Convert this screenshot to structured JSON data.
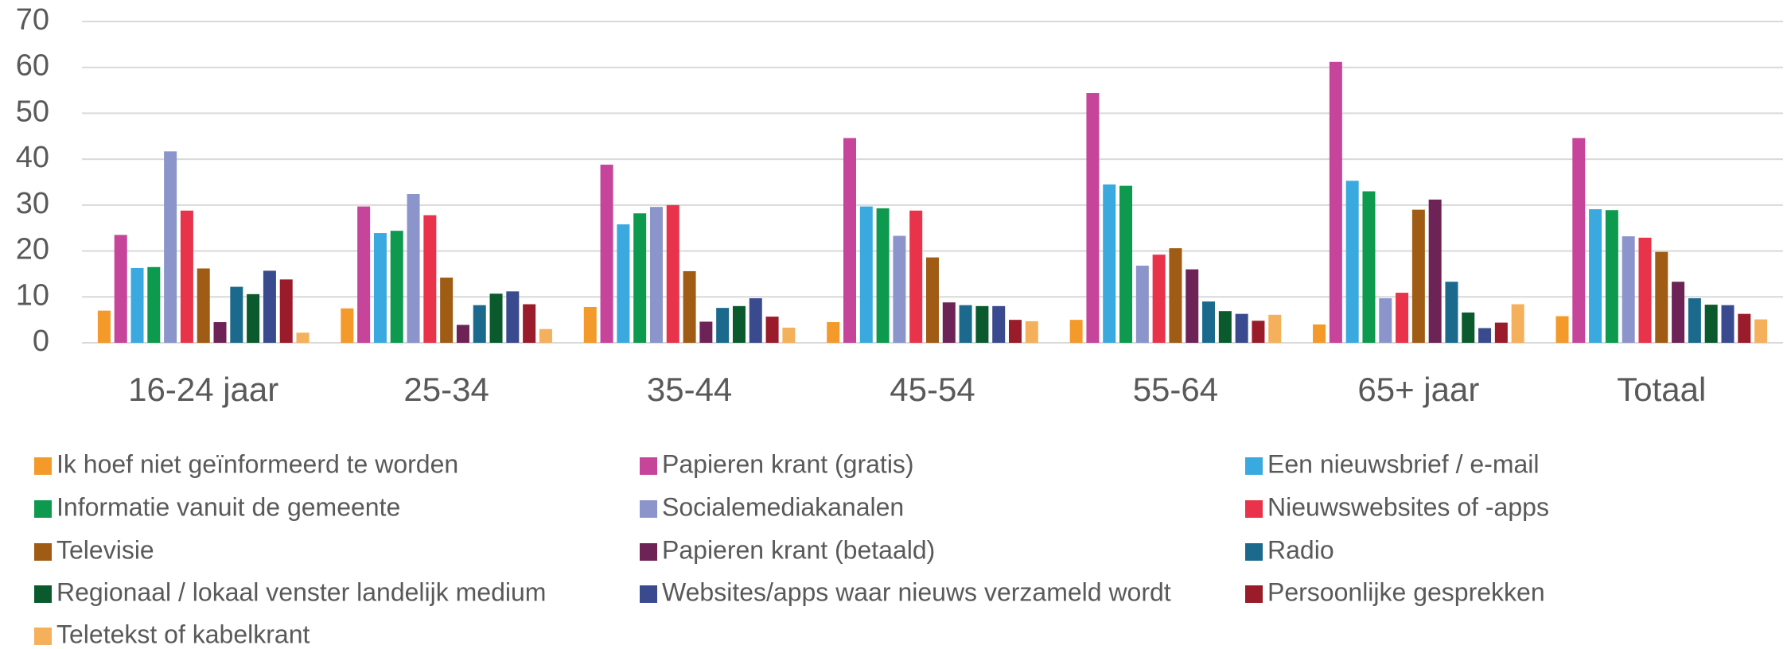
{
  "chart_data": {
    "type": "bar",
    "categories": [
      "16-24 jaar",
      "25-34",
      "35-44",
      "45-54",
      "55-64",
      "65+ jaar",
      "Totaal"
    ],
    "ylim": [
      0,
      70
    ],
    "yticks": [
      0,
      10,
      20,
      30,
      40,
      50,
      60,
      70
    ],
    "grid": true,
    "series": [
      {
        "name": "Ik hoef niet geïnformeerd te worden",
        "color": "#f39a2b",
        "values": [
          7,
          7.5,
          7.8,
          4.5,
          5,
          4,
          5.8
        ]
      },
      {
        "name": "Papieren krant (gratis)",
        "color": "#c6449a",
        "values": [
          23.5,
          29.7,
          38.8,
          44.6,
          54.4,
          61.2,
          44.6
        ]
      },
      {
        "name": "Een nieuwsbrief / e-mail",
        "color": "#3aa9e0",
        "values": [
          16.3,
          23.9,
          25.8,
          29.7,
          34.5,
          35.3,
          29.1
        ]
      },
      {
        "name": "Informatie vanuit de gemeente",
        "color": "#0e9a4e",
        "values": [
          16.5,
          24.4,
          28.2,
          29.3,
          34.2,
          33,
          28.9
        ]
      },
      {
        "name": "Socialemediakanalen",
        "color": "#8b95cb",
        "values": [
          41.7,
          32.4,
          29.6,
          23.3,
          16.8,
          9.7,
          23.2
        ]
      },
      {
        "name": "Nieuwswebsites of -apps",
        "color": "#e8334a",
        "values": [
          28.8,
          27.8,
          30,
          28.8,
          19.2,
          10.9,
          22.9
        ]
      },
      {
        "name": "Televisie",
        "color": "#a05c14",
        "values": [
          16.2,
          14.2,
          15.6,
          18.6,
          20.6,
          29,
          19.8
        ]
      },
      {
        "name": "Papieren krant (betaald)",
        "color": "#6e2357",
        "values": [
          4.5,
          3.9,
          4.6,
          8.8,
          16,
          31.2,
          13.3
        ]
      },
      {
        "name": "Radio",
        "color": "#1b6a8e",
        "values": [
          12.2,
          8.2,
          7.6,
          8.2,
          9,
          13.3,
          9.7
        ]
      },
      {
        "name": "Regionaal / lokaal venster landelijk medium",
        "color": "#0a5a2e",
        "values": [
          10.6,
          10.7,
          8,
          8,
          6.9,
          6.6,
          8.3
        ]
      },
      {
        "name": "Websites/apps waar nieuws verzameld wordt",
        "color": "#3a4a8e",
        "values": [
          15.7,
          11.2,
          9.7,
          8,
          6.3,
          3.2,
          8.2
        ]
      },
      {
        "name": "Persoonlijke gesprekken",
        "color": "#9a1b2a",
        "values": [
          13.8,
          8.4,
          5.7,
          5,
          4.8,
          4.4,
          6.3
        ]
      },
      {
        "name": "Teletekst of kabelkrant",
        "color": "#f5b05c",
        "values": [
          2.2,
          3,
          3.3,
          4.7,
          6.1,
          8.4,
          5.1
        ]
      }
    ]
  }
}
